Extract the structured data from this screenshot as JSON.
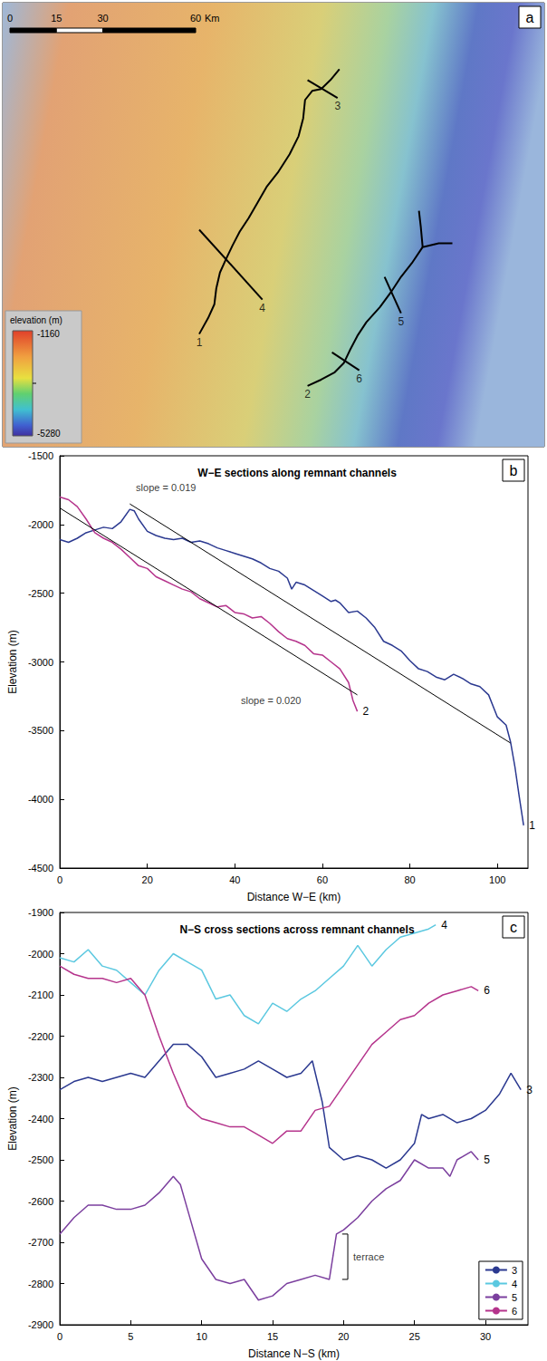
{
  "chart_data": [
    {
      "type": "map",
      "panel": "a",
      "xlim": [
        0,
        175
      ],
      "ylim": [
        0,
        143
      ],
      "tick_labels": false,
      "scale_bar": {
        "ticks": [
          0,
          15,
          30,
          60
        ],
        "unit": "Km"
      },
      "colorbar": {
        "title": "elevation (m)",
        "range": [
          -5280,
          -1160
        ]
      },
      "lines": [
        {
          "label": "1",
          "points": [
            [
              63.5,
              36.3
            ],
            [
              66.4,
              41.5
            ],
            [
              68.4,
              45.9
            ],
            [
              69.0,
              50.9
            ],
            [
              70.2,
              56.1
            ],
            [
              72.2,
              60.5
            ],
            [
              74.3,
              64.9
            ],
            [
              76.6,
              69.3
            ],
            [
              79.5,
              73.7
            ],
            [
              82.5,
              78.9
            ],
            [
              85.4,
              83.9
            ],
            [
              88.9,
              88.3
            ],
            [
              92.7,
              94.2
            ],
            [
              95.6,
              100.0
            ],
            [
              97.1,
              105.8
            ],
            [
              97.7,
              111.7
            ],
            [
              100.0,
              114.6
            ],
            [
              102.9,
              115.2
            ],
            [
              105.9,
              118.1
            ],
            [
              108.8,
              121.6
            ]
          ]
        },
        {
          "label": "2",
          "points": [
            [
              98.5,
              19.6
            ],
            [
              102.9,
              21.6
            ],
            [
              107.3,
              24.0
            ],
            [
              110.2,
              26.9
            ],
            [
              112.3,
              31.3
            ],
            [
              114.6,
              35.7
            ],
            [
              117.5,
              40.1
            ],
            [
              121.9,
              45.0
            ],
            [
              125.4,
              49.7
            ],
            [
              128.7,
              54.7
            ],
            [
              132.2,
              59.1
            ],
            [
              135.7,
              64.3
            ],
            [
              140.9,
              65.5
            ],
            [
              145.3,
              65.5
            ]
          ]
        },
        {
          "points": [
            [
              135.7,
              64.3
            ],
            [
              135.1,
              70.8
            ],
            [
              134.5,
              76.0
            ]
          ]
        },
        {
          "label": "3",
          "points": [
            [
              108.2,
              112.3
            ],
            [
              98.5,
              118.1
            ]
          ]
        },
        {
          "label": "4",
          "points": [
            [
              83.9,
              47.4
            ],
            [
              63.5,
              69.9
            ]
          ]
        },
        {
          "label": "5",
          "points": [
            [
              128.7,
              43.0
            ],
            [
              123.4,
              54.7
            ]
          ]
        },
        {
          "label": "6",
          "points": [
            [
              115.2,
              24.6
            ],
            [
              106.4,
              30.4
            ]
          ]
        }
      ]
    },
    {
      "type": "line",
      "panel": "b",
      "title": "W−E sections along remnant channels",
      "xlabel": "Distance W−E (km)",
      "ylabel": "Elevation (m)",
      "xlim": [
        0,
        107
      ],
      "xticks": [
        0,
        20,
        40,
        60,
        80,
        100
      ],
      "ylim": [
        -4500,
        -1500
      ],
      "yticks": [
        -4500,
        -4000,
        -3500,
        -3000,
        -2500,
        -2000,
        -1500
      ],
      "grid": false,
      "series": [
        {
          "name": "1",
          "color": "#2b3990",
          "x": [
            0,
            2,
            4,
            6,
            8,
            10,
            12,
            14,
            16,
            17,
            18,
            20,
            22,
            24,
            26,
            28,
            30,
            32,
            34,
            36,
            38,
            40,
            42,
            44,
            46,
            48,
            50,
            52,
            53,
            54,
            56,
            58,
            60,
            62,
            63,
            64,
            66,
            68,
            70,
            72,
            74,
            76,
            78,
            80,
            82,
            84,
            86,
            88,
            90,
            92,
            94,
            96,
            98,
            100,
            102,
            103,
            104,
            105,
            106
          ],
          "values": [
            -2110,
            -2130,
            -2100,
            -2060,
            -2040,
            -2020,
            -2030,
            -1980,
            -1890,
            -1900,
            -1960,
            -2050,
            -2080,
            -2100,
            -2110,
            -2100,
            -2130,
            -2120,
            -2140,
            -2170,
            -2190,
            -2210,
            -2230,
            -2250,
            -2280,
            -2320,
            -2340,
            -2390,
            -2470,
            -2420,
            -2440,
            -2480,
            -2520,
            -2560,
            -2550,
            -2570,
            -2640,
            -2630,
            -2680,
            -2750,
            -2850,
            -2880,
            -2920,
            -2990,
            -3050,
            -3070,
            -3110,
            -3130,
            -3090,
            -3120,
            -3160,
            -3180,
            -3240,
            -3400,
            -3460,
            -3580,
            -3760,
            -3980,
            -4190
          ]
        },
        {
          "name": "2",
          "color": "#b5348c",
          "x": [
            0,
            2,
            4,
            6,
            8,
            10,
            12,
            14,
            16,
            18,
            20,
            22,
            24,
            26,
            28,
            30,
            32,
            34,
            36,
            38,
            40,
            42,
            44,
            46,
            48,
            50,
            52,
            54,
            56,
            58,
            60,
            62,
            64,
            66,
            67,
            68
          ],
          "values": [
            -1800,
            -1820,
            -1870,
            -1960,
            -2060,
            -2100,
            -2130,
            -2180,
            -2240,
            -2300,
            -2320,
            -2380,
            -2410,
            -2440,
            -2470,
            -2490,
            -2540,
            -2570,
            -2600,
            -2590,
            -2640,
            -2650,
            -2680,
            -2670,
            -2720,
            -2780,
            -2830,
            -2850,
            -2880,
            -2940,
            -2950,
            -3000,
            -3050,
            -3150,
            -3280,
            -3360
          ]
        }
      ],
      "fit_lines": [
        {
          "x": [
            16,
            103
          ],
          "y": [
            -1850,
            -3590
          ]
        },
        {
          "x": [
            0,
            68
          ],
          "y": [
            -1880,
            -3240
          ]
        }
      ],
      "annotations": [
        {
          "text": "slope = 0.019",
          "x": 17.4,
          "y": -1730
        },
        {
          "text": "slope = 0.020",
          "x": 41.4,
          "y": -3280
        }
      ]
    },
    {
      "type": "line",
      "panel": "c",
      "title": "N−S cross sections across remnant channels",
      "xlabel": "Distance N−S (km)",
      "ylabel": "Elevation (m)",
      "xlim": [
        0,
        33
      ],
      "xticks": [
        0,
        5,
        10,
        15,
        20,
        25,
        30
      ],
      "ylim": [
        -2900,
        -1900
      ],
      "yticks": [
        -2900,
        -2800,
        -2700,
        -2600,
        -2500,
        -2400,
        -2300,
        -2200,
        -2100,
        -2000,
        -1900
      ],
      "grid": false,
      "legend": "lower right",
      "series": [
        {
          "name": "3",
          "color": "#2b3990",
          "x": [
            0,
            1,
            2,
            3,
            4,
            5,
            6,
            7,
            8,
            9,
            10,
            11,
            12,
            13,
            14,
            15,
            16,
            17,
            17.8,
            18.5,
            19,
            20,
            21,
            22,
            23,
            24,
            25,
            25.5,
            26,
            27,
            28,
            29,
            30,
            31,
            31.8,
            32.5
          ],
          "values": [
            -2330,
            -2310,
            -2300,
            -2310,
            -2300,
            -2290,
            -2300,
            -2260,
            -2220,
            -2220,
            -2250,
            -2300,
            -2290,
            -2280,
            -2260,
            -2280,
            -2300,
            -2290,
            -2260,
            -2360,
            -2470,
            -2500,
            -2490,
            -2500,
            -2520,
            -2500,
            -2460,
            -2390,
            -2400,
            -2390,
            -2410,
            -2400,
            -2380,
            -2340,
            -2290,
            -2330
          ]
        },
        {
          "name": "4",
          "color": "#5bc8e0",
          "x": [
            0,
            1,
            2,
            3,
            4,
            5,
            6,
            7,
            8,
            9,
            10,
            11,
            12,
            13,
            14,
            15,
            16,
            17,
            18,
            19,
            20,
            21,
            22,
            23,
            24,
            25,
            26,
            26.5
          ],
          "values": [
            -2010,
            -2020,
            -1990,
            -2030,
            -2040,
            -2070,
            -2100,
            -2040,
            -2000,
            -2020,
            -2040,
            -2110,
            -2100,
            -2150,
            -2170,
            -2120,
            -2140,
            -2110,
            -2090,
            -2060,
            -2030,
            -1980,
            -2030,
            -1990,
            -1960,
            -1950,
            -1940,
            -1930
          ]
        },
        {
          "name": "5",
          "color": "#7b3f9e",
          "x": [
            0,
            1,
            2,
            3,
            4,
            5,
            6,
            7,
            8,
            8.5,
            9,
            10,
            11,
            12,
            13,
            14,
            15,
            16,
            17,
            18,
            19,
            19.5,
            20,
            21,
            22,
            23,
            24,
            25,
            26,
            27,
            27.5,
            28,
            29,
            29.5
          ],
          "values": [
            -2680,
            -2640,
            -2610,
            -2610,
            -2620,
            -2620,
            -2610,
            -2580,
            -2540,
            -2560,
            -2620,
            -2740,
            -2790,
            -2800,
            -2790,
            -2840,
            -2830,
            -2800,
            -2790,
            -2780,
            -2790,
            -2680,
            -2670,
            -2640,
            -2600,
            -2570,
            -2550,
            -2500,
            -2520,
            -2520,
            -2540,
            -2500,
            -2480,
            -2500
          ]
        },
        {
          "name": "6",
          "color": "#b5348c",
          "x": [
            0,
            1,
            2,
            3,
            4,
            5,
            6,
            7,
            8,
            9,
            10,
            11,
            12,
            13,
            14,
            15,
            16,
            17,
            18,
            19,
            20,
            21,
            22,
            23,
            24,
            25,
            26,
            27,
            28,
            29,
            29.5
          ],
          "values": [
            -2030,
            -2050,
            -2060,
            -2060,
            -2070,
            -2060,
            -2100,
            -2200,
            -2290,
            -2370,
            -2400,
            -2410,
            -2420,
            -2420,
            -2440,
            -2460,
            -2430,
            -2430,
            -2380,
            -2370,
            -2320,
            -2270,
            -2220,
            -2190,
            -2160,
            -2150,
            -2120,
            -2100,
            -2090,
            -2080,
            -2090
          ]
        }
      ],
      "annotations": [
        {
          "text": "terrace",
          "x": 20.3,
          "bracket": [
            -2790,
            -2680
          ]
        }
      ]
    }
  ]
}
